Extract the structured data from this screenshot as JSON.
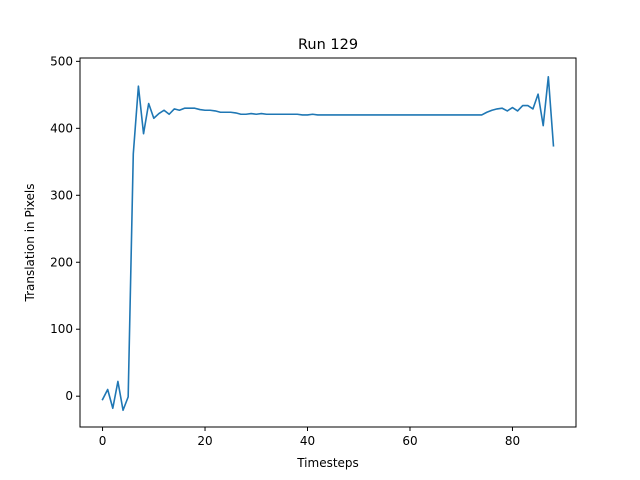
{
  "chart_data": {
    "type": "line",
    "title": "Run 129",
    "xlabel": "Timesteps",
    "ylabel": "Translation in Pixels",
    "xlim": [
      -4.4,
      92.4
    ],
    "ylim": [
      -46,
      505
    ],
    "xticks": [
      0,
      20,
      40,
      60,
      80
    ],
    "yticks": [
      0,
      100,
      200,
      300,
      400,
      500
    ],
    "grid": false,
    "color": "#1f77b4",
    "series": [
      {
        "x": [
          0,
          1,
          2,
          3,
          4,
          5,
          6,
          7,
          8,
          9,
          10,
          11,
          12,
          13,
          14,
          15,
          16,
          17,
          18,
          19,
          20,
          21,
          22,
          23,
          24,
          25,
          26,
          27,
          28,
          29,
          30,
          31,
          32,
          33,
          34,
          35,
          36,
          37,
          38,
          39,
          40,
          41,
          42,
          43,
          44,
          45,
          46,
          47,
          48,
          49,
          50,
          51,
          52,
          53,
          54,
          55,
          56,
          57,
          58,
          59,
          60,
          61,
          62,
          63,
          64,
          65,
          66,
          67,
          68,
          69,
          70,
          71,
          72,
          73,
          74,
          75,
          76,
          77,
          78,
          79,
          80,
          81,
          82,
          83,
          84,
          85,
          86,
          87,
          88
        ],
        "y": [
          -5,
          10,
          -18,
          22,
          -21,
          -1,
          362,
          463,
          392,
          437,
          415,
          422,
          427,
          421,
          429,
          427,
          430,
          430,
          430,
          428,
          427,
          427,
          426,
          424,
          424,
          424,
          423,
          421,
          421,
          422,
          421,
          422,
          421,
          421,
          421,
          421,
          421,
          421,
          421,
          420,
          420,
          421,
          420,
          420,
          420,
          420,
          420,
          420,
          420,
          420,
          420,
          420,
          420,
          420,
          420,
          420,
          420,
          420,
          420,
          420,
          420,
          420,
          420,
          420,
          420,
          420,
          420,
          420,
          420,
          420,
          420,
          420,
          420,
          420,
          420,
          424,
          427,
          429,
          430,
          426,
          431,
          426,
          434,
          434,
          429,
          451,
          404,
          477,
          374
        ]
      }
    ]
  }
}
